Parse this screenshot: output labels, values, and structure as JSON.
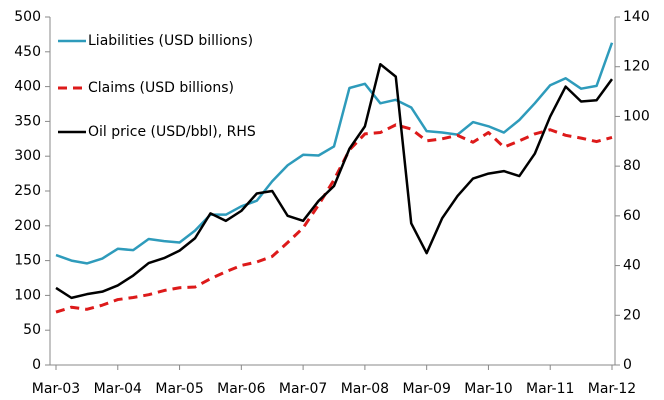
{
  "chart_data": {
    "type": "line",
    "categories": [
      "Mar-03",
      null,
      null,
      null,
      "Mar-04",
      null,
      null,
      null,
      "Mar-05",
      null,
      null,
      null,
      "Mar-06",
      null,
      null,
      null,
      "Mar-07",
      null,
      null,
      null,
      "Mar-08",
      null,
      null,
      null,
      "Mar-09",
      null,
      null,
      null,
      "Mar-10",
      null,
      null,
      null,
      "Mar-11",
      null,
      null,
      null,
      "Mar-12"
    ],
    "series": [
      {
        "name": "Liabilities (USD billions)",
        "color": "#2e9bbb",
        "style": "solid",
        "values": [
          158,
          150,
          146,
          153,
          167,
          165,
          181,
          178,
          176,
          193,
          216,
          216,
          228,
          236,
          264,
          287,
          302,
          301,
          314,
          398,
          404,
          376,
          381,
          370,
          336,
          334,
          331,
          349,
          343,
          334,
          352,
          376,
          402,
          412,
          397,
          401,
          463
        ]
      },
      {
        "name": "Claims (USD billions)",
        "color": "#dd1a1a",
        "style": "dashed",
        "values": [
          76,
          83,
          80,
          86,
          94,
          97,
          101,
          107,
          111,
          112,
          124,
          134,
          143,
          148,
          156,
          176,
          197,
          230,
          266,
          309,
          332,
          334,
          345,
          339,
          322,
          325,
          330,
          320,
          334,
          313,
          322,
          332,
          338,
          330,
          326,
          321,
          327
        ]
      },
      {
        "name": "Oil price (USD/bbl), RHS",
        "color": "#000000",
        "style": "solid",
        "axis": "y2",
        "values": [
          31,
          27,
          28.5,
          29.5,
          32,
          36,
          41,
          43,
          46,
          51,
          61,
          58,
          62,
          69,
          70,
          60,
          58,
          66,
          72,
          87,
          96,
          121,
          116,
          57,
          45,
          59,
          68,
          75,
          77,
          78,
          76,
          85,
          100,
          112,
          106,
          106.5,
          115
        ]
      }
    ],
    "ylim": [
      0,
      500
    ],
    "yticks": [
      0,
      50,
      100,
      150,
      200,
      250,
      300,
      350,
      400,
      450,
      500
    ],
    "y2lim": [
      0,
      140
    ],
    "y2ticks": [
      0,
      20,
      40,
      60,
      80,
      100,
      120,
      140
    ],
    "legend": "top-left"
  }
}
